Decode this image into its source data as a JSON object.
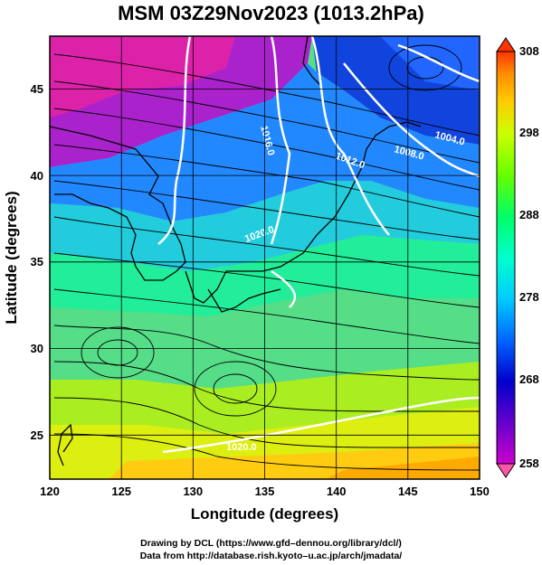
{
  "title": "MSM 03Z29Nov2023 (1013.2hPa)",
  "xaxis": {
    "label": "Longitude (degrees)",
    "range": [
      120,
      150
    ],
    "ticks": [
      "120",
      "125",
      "130",
      "135",
      "140",
      "145",
      "150"
    ]
  },
  "yaxis": {
    "label": "Latitude  (degrees)",
    "range": [
      22.4,
      48
    ],
    "ticks": [
      "25",
      "30",
      "35",
      "40",
      "45"
    ]
  },
  "colorbar": {
    "min": 258,
    "max": 308,
    "ticks": [
      "258",
      "268",
      "278",
      "288",
      "298",
      "308"
    ],
    "colors": [
      "#cc00cc",
      "#6600cc",
      "#0000cc",
      "#0066ff",
      "#00ccff",
      "#00ffcc",
      "#00ff66",
      "#66ff00",
      "#ccff00",
      "#ffcc00",
      "#ff8800",
      "#ff3300"
    ]
  },
  "isobars": [
    {
      "label": "1016.0"
    },
    {
      "label": "1012.0"
    },
    {
      "label": "1008.0"
    },
    {
      "label": "1004.0"
    },
    {
      "label": "1020.0"
    },
    {
      "label": "1020.0"
    }
  ],
  "footer": {
    "line1": "Drawing by DCL (https://www.gfd–dennou.org/library/dcl/)",
    "line2": "Data from http://database.rish.kyoto–u.ac.jp/arch/jmadata/"
  },
  "colors": {
    "frame": "#000000",
    "isobar": "#ffffff",
    "coast": "#000000"
  }
}
